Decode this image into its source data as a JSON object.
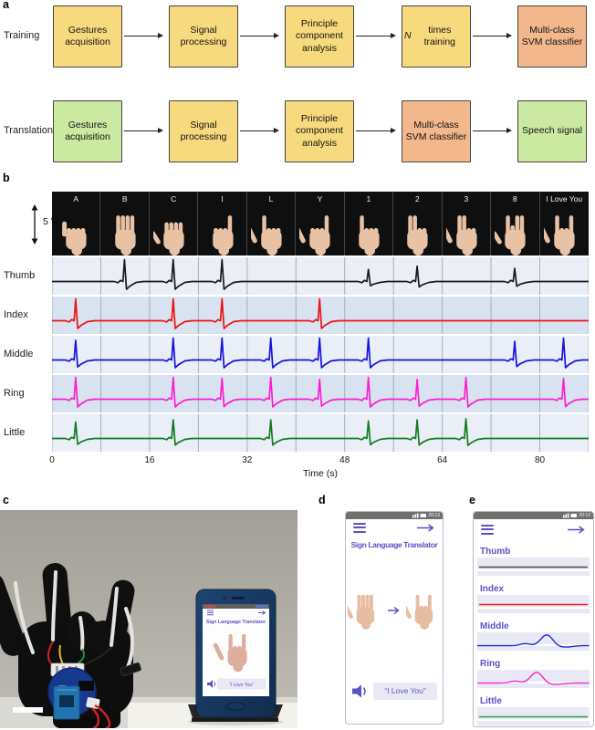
{
  "figure": {
    "panel_labels": {
      "a": "a",
      "b": "b",
      "c": "c",
      "d": "d",
      "e": "e"
    }
  },
  "colors": {
    "accent_purple": "#5b51c1",
    "lavender": "#e9e9f6",
    "box_yellow": "#f8da7e",
    "box_salmon": "#f3b78c",
    "box_green": "#cce9a2",
    "row_bg_light": "#eaeef7",
    "row_bg_dark": "#d9e2f0",
    "grid": "#a6adbb",
    "statusbar_gray": "#6f6f6f"
  },
  "flowchart": {
    "rows": [
      {
        "label": "Training",
        "steps": [
          {
            "label": "Gestures acquisition",
            "color": "#f8da7e"
          },
          {
            "label": "Signal processing",
            "color": "#f8da7e"
          },
          {
            "label": "Principle component analysis",
            "color": "#f8da7e"
          },
          {
            "label": "N times training",
            "italic_prefix": "N",
            "rest": " times training",
            "color": "#f8da7e"
          },
          {
            "label": "Multi-class SVM classifier",
            "color": "#f3b78c"
          }
        ]
      },
      {
        "label": "Translation",
        "steps": [
          {
            "label": "Gestures acquisition",
            "color": "#cce9a2"
          },
          {
            "label": "Signal processing",
            "color": "#f8da7e"
          },
          {
            "label": "Principle component analysis",
            "color": "#f8da7e"
          },
          {
            "label": "Multi-class SVM classifier",
            "color": "#f3b78c"
          },
          {
            "label": "Speech signal",
            "color": "#cce9a2"
          }
        ]
      }
    ]
  },
  "panel_b": {
    "scale_label": "5 V",
    "gesture_fingers": {
      "A": [
        0.7,
        0,
        0,
        0,
        0
      ],
      "B": [
        0,
        1,
        1,
        1,
        1
      ],
      "C": [
        0.5,
        0.5,
        0.5,
        0.5,
        0.5
      ],
      "I": [
        0,
        0,
        0,
        0,
        1
      ],
      "L": [
        1,
        1,
        0,
        0,
        0
      ],
      "Y": [
        1,
        0,
        0,
        0,
        1
      ],
      "1": [
        0,
        1,
        0,
        0,
        0
      ],
      "2": [
        0,
        1,
        1,
        0,
        0
      ],
      "3": [
        1,
        1,
        1,
        0,
        0
      ],
      "8": [
        0.5,
        1,
        0.3,
        1,
        1
      ],
      "I Love You": [
        1,
        1,
        0,
        0,
        1
      ]
    }
  },
  "chart_data": {
    "type": "line",
    "xlabel": "Time (s)",
    "x_ticks": [
      0,
      16,
      32,
      48,
      64,
      80
    ],
    "x_range": [
      0,
      88
    ],
    "gesture_duration_s": 8,
    "amplitude_scale": "5 V",
    "gesture_sequence": [
      "A",
      "B",
      "C",
      "I",
      "L",
      "Y",
      "1",
      "2",
      "3",
      "8",
      "I Love You"
    ],
    "series": [
      {
        "name": "Thumb",
        "color": "#1a1a1a",
        "spikes": [
          {
            "g": "B",
            "a": 1
          },
          {
            "g": "C",
            "a": 1
          },
          {
            "g": "I",
            "a": 1
          },
          {
            "g": "1",
            "a": 0.55
          },
          {
            "g": "2",
            "a": 0.7
          },
          {
            "g": "8",
            "a": 0.6
          }
        ]
      },
      {
        "name": "Index",
        "color": "#ea1313",
        "spikes": [
          {
            "g": "A",
            "a": 1
          },
          {
            "g": "C",
            "a": 1
          },
          {
            "g": "I",
            "a": 1
          },
          {
            "g": "Y",
            "a": 1
          }
        ]
      },
      {
        "name": "Middle",
        "color": "#1414e0",
        "spikes": [
          {
            "g": "A",
            "a": 0.9
          },
          {
            "g": "C",
            "a": 1
          },
          {
            "g": "I",
            "a": 1
          },
          {
            "g": "L",
            "a": 1
          },
          {
            "g": "Y",
            "a": 1
          },
          {
            "g": "1",
            "a": 1
          },
          {
            "g": "8",
            "a": 0.85
          },
          {
            "g": "I Love You",
            "a": 1
          }
        ]
      },
      {
        "name": "Ring",
        "color": "#fb1ed0",
        "spikes": [
          {
            "g": "A",
            "a": 1
          },
          {
            "g": "C",
            "a": 1
          },
          {
            "g": "I",
            "a": 0.95
          },
          {
            "g": "L",
            "a": 1
          },
          {
            "g": "Y",
            "a": 0.9
          },
          {
            "g": "1",
            "a": 1
          },
          {
            "g": "2",
            "a": 0.9
          },
          {
            "g": "3",
            "a": 1
          },
          {
            "g": "I Love You",
            "a": 0.95
          }
        ]
      },
      {
        "name": "Little",
        "color": "#0f7d1f",
        "spikes": [
          {
            "g": "A",
            "a": 0.75
          },
          {
            "g": "C",
            "a": 0.85
          },
          {
            "g": "L",
            "a": 0.85
          },
          {
            "g": "1",
            "a": 0.8
          },
          {
            "g": "2",
            "a": 0.85
          },
          {
            "g": "3",
            "a": 0.9
          }
        ]
      }
    ]
  },
  "panel_c": {
    "screen_title": "Sign Language Translator",
    "speech_text": "“I Love You”"
  },
  "panel_d": {
    "status_time": "20:13",
    "title": "Sign Language Translator",
    "speech_text": "“I Love You”"
  },
  "panel_e": {
    "status_time": "20:13",
    "channels": [
      {
        "name": "Thumb",
        "color": "#4a4a4a",
        "bump": null
      },
      {
        "name": "Index",
        "color": "#e32b22",
        "bump": null
      },
      {
        "name": "Middle",
        "color": "#2a2ad8",
        "bump": 0.62
      },
      {
        "name": "Ring",
        "color": "#f32bd0",
        "bump": 0.53
      },
      {
        "name": "Little",
        "color": "#23a33c",
        "bump": null
      }
    ]
  }
}
